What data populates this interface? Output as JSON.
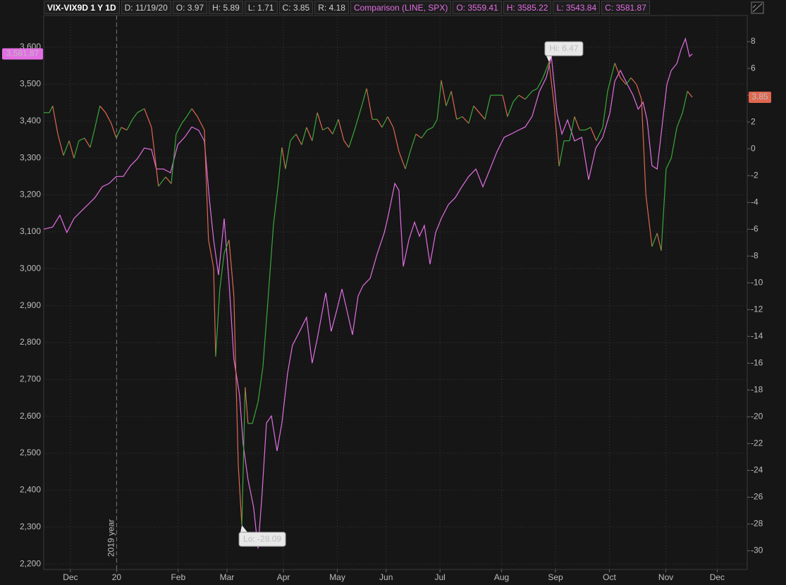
{
  "chart_data": {
    "type": "line",
    "header": [
      "VIX-VIX9D 1 Y 1D",
      "D: 11/19/20",
      "O: 3.97",
      "H: 5.89",
      "L: 1.71",
      "C: 3.85",
      "R: 4.18",
      "Comparison (LINE, SPX)",
      "O: 3559.41",
      "H: 3585.22",
      "L: 3543.84",
      "C: 3581.87"
    ],
    "year_separator_label": "2019 year",
    "hi_label": "Hi: 6.47",
    "lo_label": "Lo: -28.09",
    "grid": true,
    "xlim": [
      -10.4,
      263.7
    ],
    "xticks": [
      {
        "value": 0,
        "label": "Dec"
      },
      {
        "value": 18,
        "label": "20"
      },
      {
        "value": 42,
        "label": "Feb"
      },
      {
        "value": 61,
        "label": "Mar"
      },
      {
        "value": 83,
        "label": "Apr"
      },
      {
        "value": 104,
        "label": "May"
      },
      {
        "value": 123,
        "label": "Jun"
      },
      {
        "value": 144,
        "label": "Jul"
      },
      {
        "value": 168,
        "label": "Aug"
      },
      {
        "value": 189,
        "label": "Sep"
      },
      {
        "value": 210,
        "label": "Oct"
      },
      {
        "value": 232,
        "label": "Nov"
      },
      {
        "value": 252,
        "label": "Dec"
      }
    ],
    "ylim": [
      2185,
      3686
    ],
    "yticks": [
      {
        "value": 2200,
        "label": "2,200"
      },
      {
        "value": 2300,
        "label": "2,300"
      },
      {
        "value": 2400,
        "label": "2,400"
      },
      {
        "value": 2500,
        "label": "2,500"
      },
      {
        "value": 2600,
        "label": "2,600"
      },
      {
        "value": 2700,
        "label": "2,700"
      },
      {
        "value": 2800,
        "label": "2,800"
      },
      {
        "value": 2900,
        "label": "2,900"
      },
      {
        "value": 3000,
        "label": "3,000"
      },
      {
        "value": 3100,
        "label": "3,100"
      },
      {
        "value": 3200,
        "label": "3,200"
      },
      {
        "value": 3300,
        "label": "3,300"
      },
      {
        "value": 3400,
        "label": "3,400"
      },
      {
        "value": 3500,
        "label": "3,500"
      },
      {
        "value": 3600,
        "label": "3,600"
      }
    ],
    "y2lim": [
      -31.4,
      9.95
    ],
    "y2ticks": [
      -30,
      -28,
      -26,
      -24,
      -22,
      -20,
      -18,
      -16,
      -14,
      -12,
      -10,
      -8,
      -6,
      -4,
      -2,
      0,
      2,
      4,
      6,
      8
    ],
    "series": [
      {
        "name": "SPX",
        "color": "#e36ee3",
        "axis": "y",
        "last_label": "3,581.87",
        "x": [
          -10.4,
          -6.9,
          -4.1,
          -1.4,
          1.4,
          4.1,
          6.9,
          9.6,
          12.4,
          15.1,
          17.9,
          20.6,
          23.4,
          26.1,
          28.8,
          31.6,
          33.5,
          36.3,
          39.0,
          41.8,
          44.5,
          47.3,
          50.0,
          52.2,
          54.1,
          55.8,
          57.7,
          59.9,
          61.8,
          63.7,
          65.9,
          67.3,
          69.2,
          71.4,
          73.1,
          74.7,
          76.4,
          78.3,
          80.5,
          82.4,
          84.6,
          86.5,
          89.3,
          92.0,
          94.2,
          96.2,
          99.5,
          101.6,
          103.8,
          105.8,
          107.7,
          109.9,
          112.1,
          114.0,
          116.8,
          119.5,
          122.3,
          123.6,
          126.4,
          128.0,
          129.7,
          131.9,
          134.1,
          136.0,
          137.9,
          140.1,
          142.3,
          144.5,
          147.3,
          150.0,
          152.5,
          155.2,
          158.0,
          160.7,
          163.5,
          166.2,
          169.0,
          171.7,
          174.5,
          177.2,
          179.9,
          182.7,
          185.4,
          187.4,
          189.6,
          191.5,
          193.7,
          196.4,
          199.2,
          201.9,
          204.7,
          207.4,
          210.2,
          212.1,
          214.3,
          217.0,
          219.2,
          221.2,
          223.1,
          224.7,
          226.6,
          228.6,
          230.8,
          232.4,
          234.1,
          236.3,
          237.9,
          239.6,
          241.2,
          242.3
        ],
        "values": [
          3107,
          3113,
          3145,
          3098,
          3136,
          3155,
          3174,
          3193,
          3222,
          3231,
          3250,
          3250,
          3279,
          3298,
          3327,
          3323,
          3270,
          3270,
          3260,
          3336,
          3356,
          3384,
          3375,
          3346,
          3193,
          3079,
          2983,
          3136,
          2964,
          2754,
          2658,
          2525,
          2429,
          2353,
          2242,
          2391,
          2582,
          2601,
          2506,
          2582,
          2716,
          2792,
          2830,
          2868,
          2744,
          2811,
          2935,
          2830,
          2888,
          2945,
          2888,
          2821,
          2926,
          2954,
          2974,
          3040,
          3098,
          3136,
          3231,
          3212,
          3006,
          3079,
          3126,
          3088,
          3117,
          3012,
          3098,
          3136,
          3174,
          3193,
          3222,
          3250,
          3270,
          3222,
          3270,
          3317,
          3356,
          3365,
          3375,
          3384,
          3413,
          3480,
          3518,
          3575,
          3422,
          3365,
          3403,
          3346,
          3356,
          3241,
          3327,
          3356,
          3422,
          3508,
          3537,
          3499,
          3470,
          3432,
          3451,
          3403,
          3279,
          3270,
          3403,
          3499,
          3537,
          3556,
          3594,
          3623,
          3575,
          3581.87
        ]
      },
      {
        "name": "VIX-VIX9D",
        "color": "#3aa83a",
        "down_color": "#e0674f",
        "axis": "y2",
        "last_label": "3.85",
        "x": [
          -10.4,
          -8.2,
          -6.9,
          -4.9,
          -2.7,
          -0.5,
          1.4,
          3.3,
          5.5,
          7.7,
          9.6,
          11.5,
          13.7,
          15.9,
          17.9,
          19.8,
          22.0,
          24.2,
          26.1,
          28.8,
          31.6,
          34.3,
          37.1,
          39.3,
          41.2,
          43.4,
          45.3,
          47.3,
          49.5,
          52.2,
          53.8,
          55.8,
          56.6,
          58.2,
          59.9,
          61.8,
          63.7,
          65.4,
          66.8,
          68.1,
          69.2,
          70.9,
          73.1,
          75.0,
          76.9,
          79.1,
          81.0,
          82.4,
          83.8,
          85.7,
          87.9,
          90.1,
          92.0,
          94.2,
          96.2,
          98.3,
          100.3,
          102.2,
          104.4,
          106.6,
          108.5,
          110.7,
          113.2,
          115.4,
          117.6,
          119.5,
          121.4,
          123.6,
          125.8,
          128.0,
          130.5,
          132.4,
          134.6,
          136.8,
          139.0,
          141.2,
          142.9,
          144.5,
          146.4,
          148.4,
          150.5,
          152.7,
          155.2,
          157.1,
          159.3,
          161.5,
          163.7,
          166.2,
          168.4,
          170.3,
          172.5,
          174.7,
          177.2,
          179.9,
          181.9,
          184.1,
          186.5,
          188.5,
          190.4,
          192.3,
          194.5,
          196.4,
          198.4,
          200.5,
          202.7,
          204.9,
          207.4,
          209.3,
          212.1,
          214.3,
          216.5,
          218.4,
          220.6,
          222.5,
          224.2,
          226.6,
          228.6,
          230.2,
          232.1,
          234.1,
          236.3,
          238.5,
          240.4,
          242.3
        ],
        "values": [
          2.7,
          2.7,
          3.2,
          1.1,
          -0.5,
          0.6,
          -0.7,
          0.6,
          0.8,
          0.1,
          1.6,
          3.2,
          2.7,
          1.9,
          0.8,
          1.6,
          1.4,
          2.2,
          2.7,
          3.0,
          1.6,
          -2.8,
          -2.1,
          -2.6,
          1.1,
          1.9,
          2.4,
          3.0,
          2.4,
          1.4,
          -6.8,
          -8.9,
          -15.5,
          -10.5,
          -7.8,
          -6.8,
          -11.0,
          -23.6,
          -28.09,
          -17.8,
          -20.5,
          -20.5,
          -18.9,
          -16.3,
          -11.5,
          -5.7,
          -2.6,
          0.1,
          -1.5,
          0.6,
          1.1,
          0.3,
          1.6,
          0.6,
          2.7,
          1.4,
          1.6,
          1.1,
          2.2,
          0.6,
          0.1,
          1.4,
          3.0,
          4.5,
          2.2,
          2.2,
          1.6,
          2.4,
          1.6,
          -0.2,
          -1.5,
          -0.2,
          1.1,
          0.8,
          1.4,
          1.6,
          2.2,
          5.1,
          3.2,
          4.3,
          2.2,
          2.4,
          1.9,
          3.2,
          2.7,
          2.2,
          4.0,
          4.0,
          4.0,
          2.4,
          3.5,
          4.0,
          3.7,
          4.3,
          4.5,
          5.3,
          6.47,
          3.2,
          -1.3,
          0.6,
          0.6,
          2.4,
          1.4,
          1.4,
          1.6,
          0.6,
          1.6,
          4.3,
          6.4,
          5.3,
          4.8,
          5.3,
          4.8,
          3.7,
          -3.4,
          -7.3,
          -6.3,
          -7.6,
          -1.5,
          -0.7,
          1.6,
          2.7,
          4.3,
          3.85
        ]
      }
    ]
  }
}
